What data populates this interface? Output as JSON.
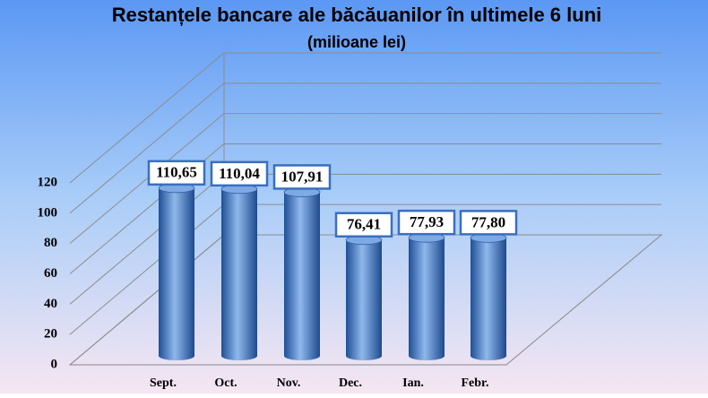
{
  "chart_data": {
    "type": "bar3d",
    "title": "Restanțele bancare ale băcăuanilor în ultimele 6 luni",
    "subtitle": "(milioane lei)",
    "categories": [
      "Sept.",
      "Oct.",
      "Nov.",
      "Dec.",
      "Ian.",
      "Febr."
    ],
    "values": [
      110.65,
      110.04,
      107.91,
      76.41,
      77.93,
      77.8
    ],
    "value_labels": [
      "110,65",
      "110,04",
      "107,91",
      "76,41",
      "77,93",
      "77,80"
    ],
    "color": "#3f78c8",
    "ylim": [
      0,
      120
    ],
    "yticks": [
      0,
      20,
      40,
      60,
      80,
      100,
      120
    ],
    "grid": true
  }
}
